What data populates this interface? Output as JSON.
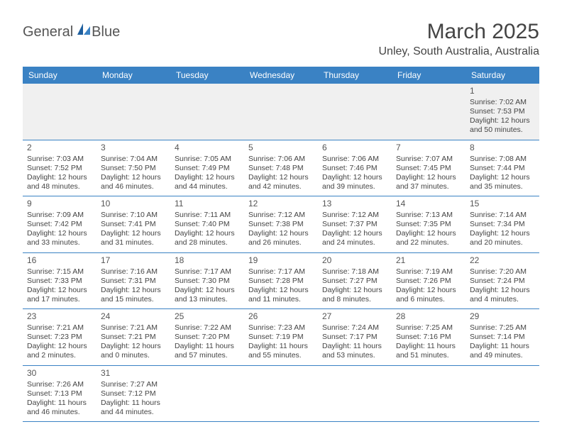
{
  "brand": {
    "word1": "General",
    "word2": "Blue"
  },
  "title": "March 2025",
  "location": "Unley, South Australia, Australia",
  "day_names": [
    "Sunday",
    "Monday",
    "Tuesday",
    "Wednesday",
    "Thursday",
    "Friday",
    "Saturday"
  ],
  "colors": {
    "header_bg": "#3a82c4",
    "header_text": "#ffffff",
    "border": "#3a82c4",
    "shade": "#f0f0f0",
    "text": "#444444",
    "brand_blue": "#2d72b8"
  },
  "weeks": [
    [
      null,
      null,
      null,
      null,
      null,
      null,
      {
        "n": "1",
        "sr": "Sunrise: 7:02 AM",
        "ss": "Sunset: 7:53 PM",
        "d1": "Daylight: 12 hours",
        "d2": "and 50 minutes."
      }
    ],
    [
      {
        "n": "2",
        "sr": "Sunrise: 7:03 AM",
        "ss": "Sunset: 7:52 PM",
        "d1": "Daylight: 12 hours",
        "d2": "and 48 minutes."
      },
      {
        "n": "3",
        "sr": "Sunrise: 7:04 AM",
        "ss": "Sunset: 7:50 PM",
        "d1": "Daylight: 12 hours",
        "d2": "and 46 minutes."
      },
      {
        "n": "4",
        "sr": "Sunrise: 7:05 AM",
        "ss": "Sunset: 7:49 PM",
        "d1": "Daylight: 12 hours",
        "d2": "and 44 minutes."
      },
      {
        "n": "5",
        "sr": "Sunrise: 7:06 AM",
        "ss": "Sunset: 7:48 PM",
        "d1": "Daylight: 12 hours",
        "d2": "and 42 minutes."
      },
      {
        "n": "6",
        "sr": "Sunrise: 7:06 AM",
        "ss": "Sunset: 7:46 PM",
        "d1": "Daylight: 12 hours",
        "d2": "and 39 minutes."
      },
      {
        "n": "7",
        "sr": "Sunrise: 7:07 AM",
        "ss": "Sunset: 7:45 PM",
        "d1": "Daylight: 12 hours",
        "d2": "and 37 minutes."
      },
      {
        "n": "8",
        "sr": "Sunrise: 7:08 AM",
        "ss": "Sunset: 7:44 PM",
        "d1": "Daylight: 12 hours",
        "d2": "and 35 minutes."
      }
    ],
    [
      {
        "n": "9",
        "sr": "Sunrise: 7:09 AM",
        "ss": "Sunset: 7:42 PM",
        "d1": "Daylight: 12 hours",
        "d2": "and 33 minutes."
      },
      {
        "n": "10",
        "sr": "Sunrise: 7:10 AM",
        "ss": "Sunset: 7:41 PM",
        "d1": "Daylight: 12 hours",
        "d2": "and 31 minutes."
      },
      {
        "n": "11",
        "sr": "Sunrise: 7:11 AM",
        "ss": "Sunset: 7:40 PM",
        "d1": "Daylight: 12 hours",
        "d2": "and 28 minutes."
      },
      {
        "n": "12",
        "sr": "Sunrise: 7:12 AM",
        "ss": "Sunset: 7:38 PM",
        "d1": "Daylight: 12 hours",
        "d2": "and 26 minutes."
      },
      {
        "n": "13",
        "sr": "Sunrise: 7:12 AM",
        "ss": "Sunset: 7:37 PM",
        "d1": "Daylight: 12 hours",
        "d2": "and 24 minutes."
      },
      {
        "n": "14",
        "sr": "Sunrise: 7:13 AM",
        "ss": "Sunset: 7:35 PM",
        "d1": "Daylight: 12 hours",
        "d2": "and 22 minutes."
      },
      {
        "n": "15",
        "sr": "Sunrise: 7:14 AM",
        "ss": "Sunset: 7:34 PM",
        "d1": "Daylight: 12 hours",
        "d2": "and 20 minutes."
      }
    ],
    [
      {
        "n": "16",
        "sr": "Sunrise: 7:15 AM",
        "ss": "Sunset: 7:33 PM",
        "d1": "Daylight: 12 hours",
        "d2": "and 17 minutes."
      },
      {
        "n": "17",
        "sr": "Sunrise: 7:16 AM",
        "ss": "Sunset: 7:31 PM",
        "d1": "Daylight: 12 hours",
        "d2": "and 15 minutes."
      },
      {
        "n": "18",
        "sr": "Sunrise: 7:17 AM",
        "ss": "Sunset: 7:30 PM",
        "d1": "Daylight: 12 hours",
        "d2": "and 13 minutes."
      },
      {
        "n": "19",
        "sr": "Sunrise: 7:17 AM",
        "ss": "Sunset: 7:28 PM",
        "d1": "Daylight: 12 hours",
        "d2": "and 11 minutes."
      },
      {
        "n": "20",
        "sr": "Sunrise: 7:18 AM",
        "ss": "Sunset: 7:27 PM",
        "d1": "Daylight: 12 hours",
        "d2": "and 8 minutes."
      },
      {
        "n": "21",
        "sr": "Sunrise: 7:19 AM",
        "ss": "Sunset: 7:26 PM",
        "d1": "Daylight: 12 hours",
        "d2": "and 6 minutes."
      },
      {
        "n": "22",
        "sr": "Sunrise: 7:20 AM",
        "ss": "Sunset: 7:24 PM",
        "d1": "Daylight: 12 hours",
        "d2": "and 4 minutes."
      }
    ],
    [
      {
        "n": "23",
        "sr": "Sunrise: 7:21 AM",
        "ss": "Sunset: 7:23 PM",
        "d1": "Daylight: 12 hours",
        "d2": "and 2 minutes."
      },
      {
        "n": "24",
        "sr": "Sunrise: 7:21 AM",
        "ss": "Sunset: 7:21 PM",
        "d1": "Daylight: 12 hours",
        "d2": "and 0 minutes."
      },
      {
        "n": "25",
        "sr": "Sunrise: 7:22 AM",
        "ss": "Sunset: 7:20 PM",
        "d1": "Daylight: 11 hours",
        "d2": "and 57 minutes."
      },
      {
        "n": "26",
        "sr": "Sunrise: 7:23 AM",
        "ss": "Sunset: 7:19 PM",
        "d1": "Daylight: 11 hours",
        "d2": "and 55 minutes."
      },
      {
        "n": "27",
        "sr": "Sunrise: 7:24 AM",
        "ss": "Sunset: 7:17 PM",
        "d1": "Daylight: 11 hours",
        "d2": "and 53 minutes."
      },
      {
        "n": "28",
        "sr": "Sunrise: 7:25 AM",
        "ss": "Sunset: 7:16 PM",
        "d1": "Daylight: 11 hours",
        "d2": "and 51 minutes."
      },
      {
        "n": "29",
        "sr": "Sunrise: 7:25 AM",
        "ss": "Sunset: 7:14 PM",
        "d1": "Daylight: 11 hours",
        "d2": "and 49 minutes."
      }
    ],
    [
      {
        "n": "30",
        "sr": "Sunrise: 7:26 AM",
        "ss": "Sunset: 7:13 PM",
        "d1": "Daylight: 11 hours",
        "d2": "and 46 minutes."
      },
      {
        "n": "31",
        "sr": "Sunrise: 7:27 AM",
        "ss": "Sunset: 7:12 PM",
        "d1": "Daylight: 11 hours",
        "d2": "and 44 minutes."
      },
      null,
      null,
      null,
      null,
      null
    ]
  ]
}
